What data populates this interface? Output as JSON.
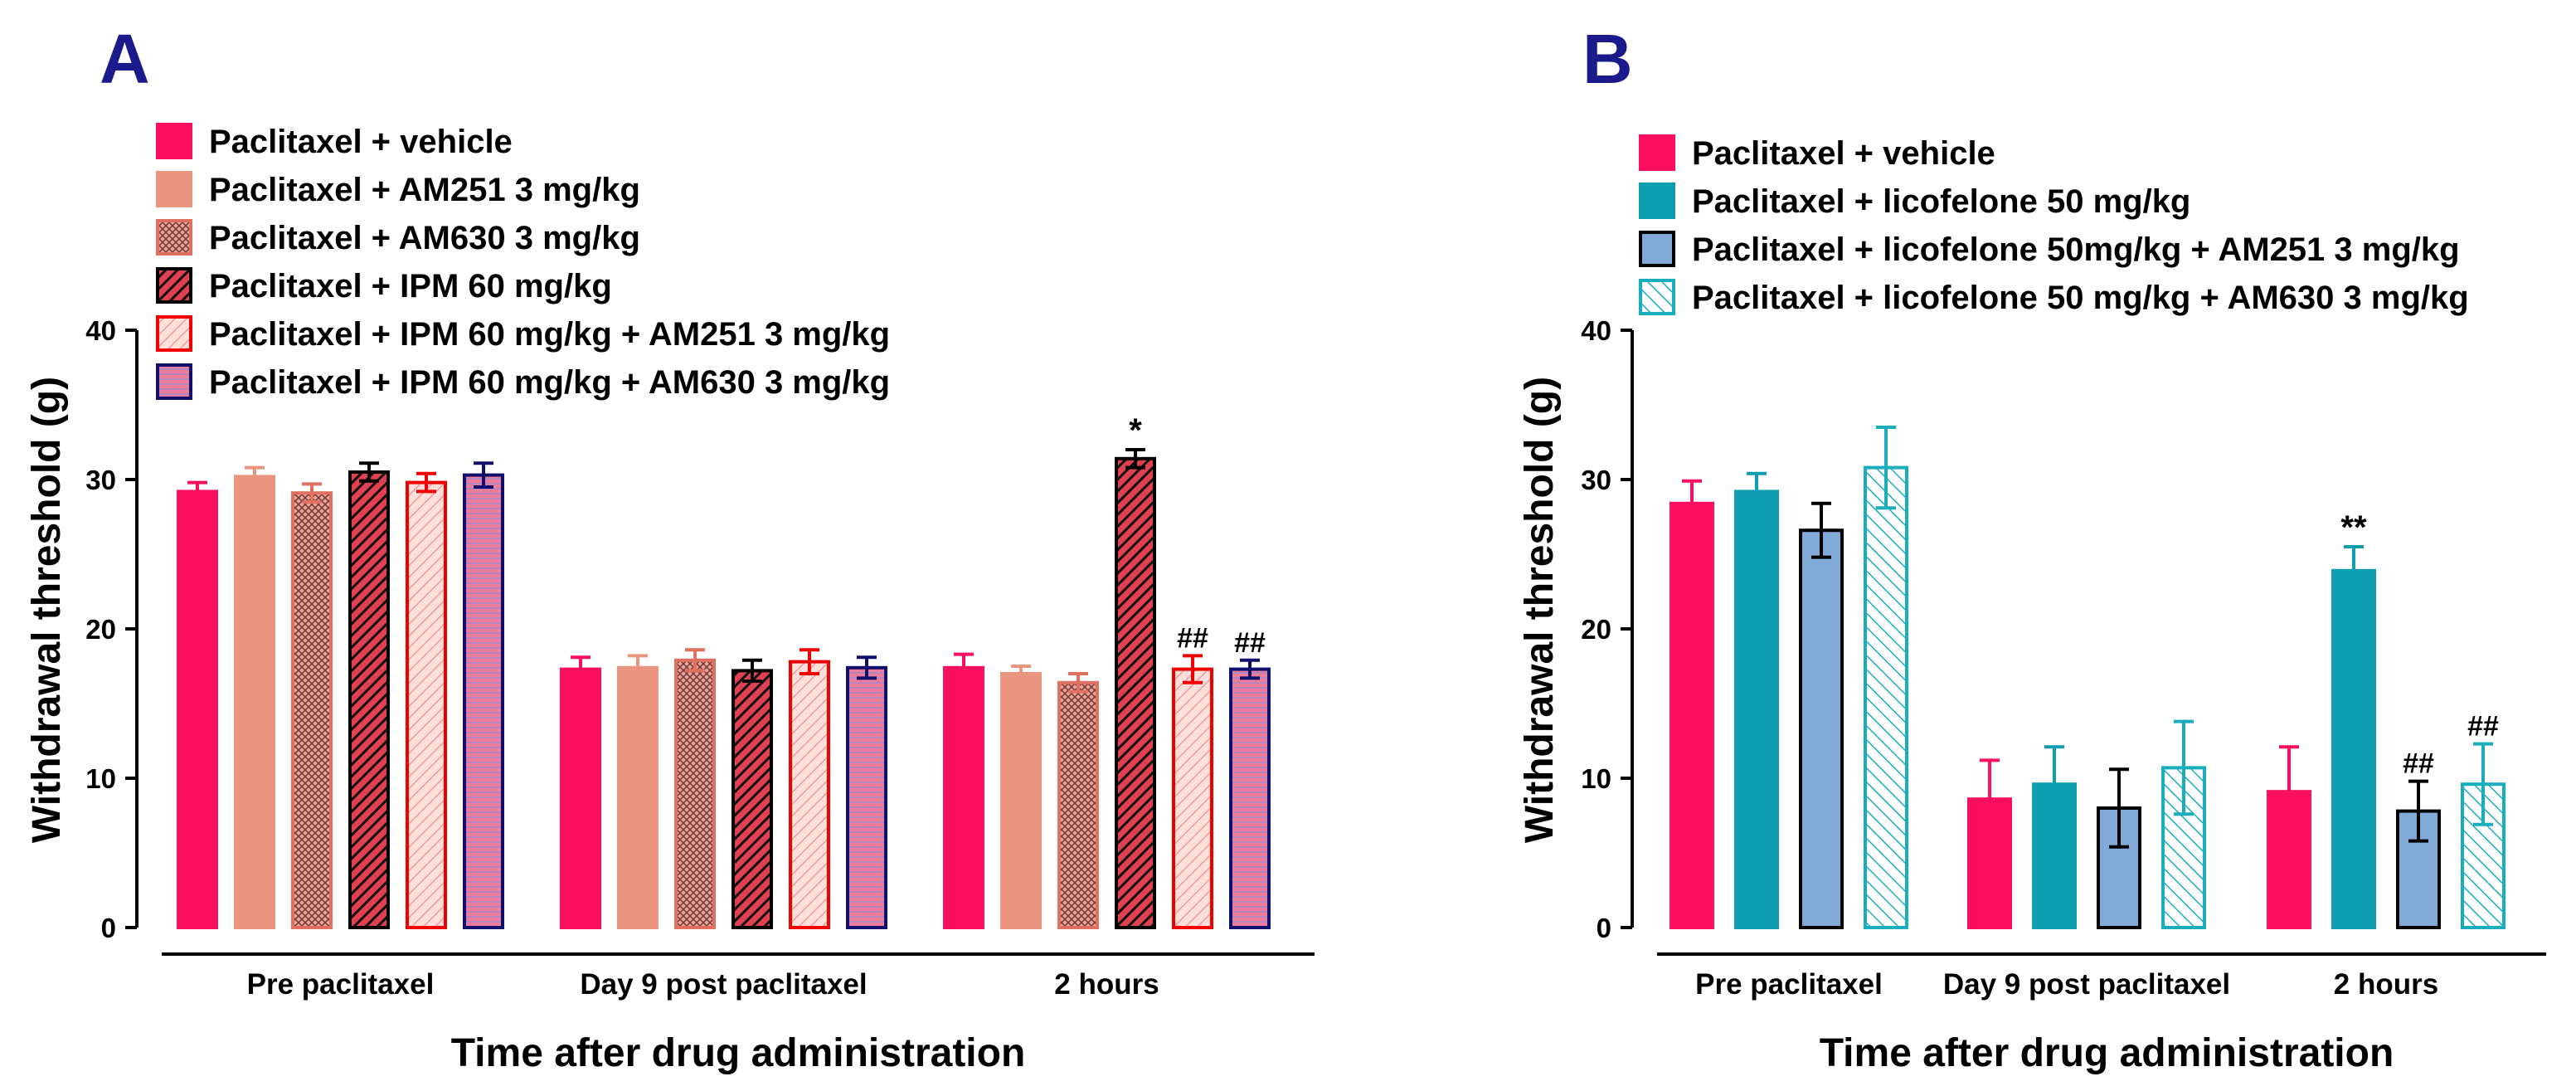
{
  "chart_data": [
    {
      "panel": "A",
      "type": "bar",
      "xlabel": "Time after drug administration",
      "ylabel": "Withdrawal threshold (g)",
      "ylim": [
        0,
        40
      ],
      "yticks": [
        0,
        10,
        20,
        30,
        40
      ],
      "categories": [
        "Pre paclitaxel",
        "Day 9 post paclitaxel",
        "2 hours"
      ],
      "legend_position": "top-left",
      "series": [
        {
          "name": "Paclitaxel + vehicle",
          "values": [
            29.2,
            17.3,
            17.4
          ],
          "errors": [
            0.6,
            0.8,
            0.9
          ],
          "fill": "#fa0f5f",
          "stroke": "#fa0f5f",
          "pattern": "solid",
          "annotations": [
            "",
            "",
            ""
          ]
        },
        {
          "name": "Paclitaxel + AM251 3 mg/kg",
          "values": [
            30.2,
            17.4,
            17.0
          ],
          "errors": [
            0.6,
            0.8,
            0.5
          ],
          "fill": "#ea9580",
          "stroke": "#ea9580",
          "pattern": "solid",
          "annotations": [
            "",
            "",
            ""
          ]
        },
        {
          "name": "Paclitaxel + AM630 3 mg/kg",
          "values": [
            29.1,
            17.9,
            16.4
          ],
          "errors": [
            0.6,
            0.7,
            0.6
          ],
          "fill": "#e09a8c",
          "stroke": "#e07060",
          "pattern": "crosshatch",
          "annotations": [
            "",
            "",
            ""
          ]
        },
        {
          "name": "Paclitaxel + IPM 60 mg/kg",
          "values": [
            30.5,
            17.2,
            31.4
          ],
          "errors": [
            0.6,
            0.7,
            0.6
          ],
          "fill": "#e04050",
          "stroke": "#000000",
          "pattern": "diagonal-dark",
          "annotations": [
            "",
            "",
            "*"
          ]
        },
        {
          "name": "Paclitaxel + IPM 60 mg/kg + AM251 3 mg/kg",
          "values": [
            29.8,
            17.8,
            17.3
          ],
          "errors": [
            0.6,
            0.8,
            0.9
          ],
          "fill": "#fbd0c8",
          "stroke": "#f00000",
          "pattern": "diagonal-light",
          "annotations": [
            "",
            "",
            "##"
          ]
        },
        {
          "name": "Paclitaxel + IPM 60 mg/kg + AM630 3 mg/kg",
          "values": [
            30.3,
            17.4,
            17.3
          ],
          "errors": [
            0.8,
            0.7,
            0.6
          ],
          "fill": "#f07c9c",
          "stroke": "#10106c",
          "pattern": "horizontal",
          "annotations": [
            "",
            "",
            "##"
          ]
        }
      ]
    },
    {
      "panel": "B",
      "type": "bar",
      "xlabel": "Time after drug administration",
      "ylabel": "Withdrawal threshold (g)",
      "ylim": [
        0,
        40
      ],
      "yticks": [
        0,
        10,
        20,
        30,
        40
      ],
      "categories": [
        "Pre paclitaxel",
        "Day 9 post paclitaxel",
        "2 hours"
      ],
      "legend_position": "top-left",
      "series": [
        {
          "name": "Paclitaxel + vehicle",
          "values": [
            28.4,
            8.6,
            9.1
          ],
          "errors": [
            1.5,
            2.6,
            3.0
          ],
          "fill": "#fa0f5f",
          "stroke": "#fa0f5f",
          "pattern": "solid",
          "annotations": [
            "",
            "",
            ""
          ]
        },
        {
          "name": "Paclitaxel + licofelone 50 mg/kg",
          "values": [
            29.2,
            9.6,
            23.9
          ],
          "errors": [
            1.2,
            2.5,
            1.6
          ],
          "fill": "#0f9db0",
          "stroke": "#0f9db0",
          "pattern": "solid",
          "annotations": [
            "",
            "",
            "**"
          ]
        },
        {
          "name": "Paclitaxel + licofelone 50mg/kg + AM251 3 mg/kg",
          "values": [
            26.6,
            8.0,
            7.8
          ],
          "errors": [
            1.8,
            2.6,
            2.0
          ],
          "fill": "#82aad8",
          "stroke": "#000000",
          "pattern": "solid",
          "annotations": [
            "",
            "",
            "##"
          ]
        },
        {
          "name": "Paclitaxel + licofelone 50 mg/kg + AM630 3 mg/kg",
          "values": [
            30.8,
            10.7,
            9.6
          ],
          "errors": [
            2.7,
            3.1,
            2.7
          ],
          "fill": "#ffffff",
          "stroke": "#1aaebc",
          "pattern": "diagonal-cyan",
          "annotations": [
            "",
            "",
            "##"
          ]
        }
      ]
    }
  ]
}
